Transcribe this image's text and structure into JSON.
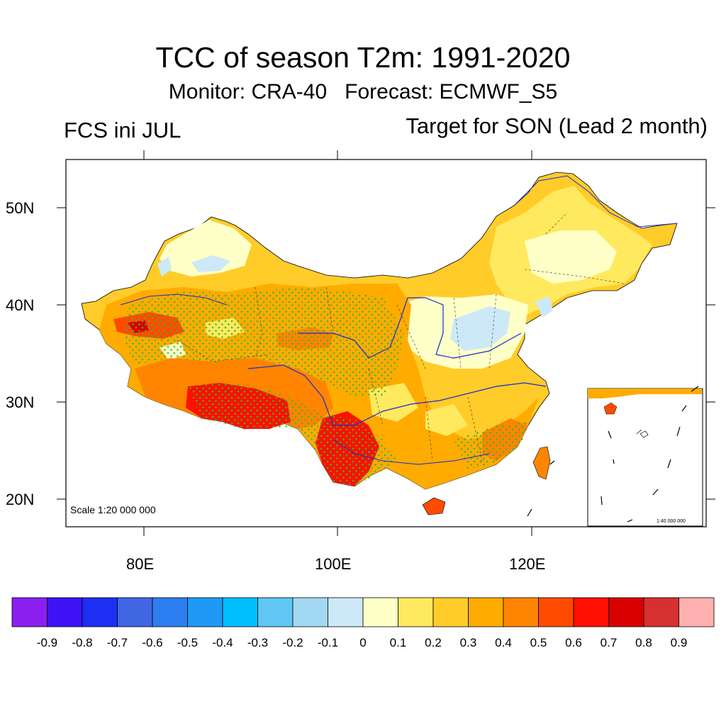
{
  "title": "TCC of season T2m: 1991-2020",
  "subtitle": "Monitor: CRA-40   Forecast: ECMWF_S5",
  "left_label": "FCS ini JUL",
  "right_label": "Target for SON (Lead 2 month)",
  "axes": {
    "lat_labels": [
      "50N",
      "40N",
      "30N",
      "20N"
    ],
    "lon_labels": [
      "80E",
      "100E",
      "120E"
    ],
    "lat_range": [
      17,
      55
    ],
    "lon_range": [
      72,
      138
    ]
  },
  "scale_text": "Scale 1:20 000 000",
  "inset_scale_text": "1:40 000 000",
  "colorbar": {
    "labels": [
      "-0.9",
      "-0.8",
      "-0.7",
      "-0.6",
      "-0.5",
      "-0.4",
      "-0.3",
      "-0.2",
      "-0.1",
      "0",
      "0.1",
      "0.2",
      "0.3",
      "0.4",
      "0.5",
      "0.6",
      "0.7",
      "0.8",
      "0.9"
    ],
    "colors": [
      "#8b1ff0",
      "#3d12f5",
      "#1e2ff4",
      "#4066e4",
      "#2d7ef0",
      "#1e9af6",
      "#00bfff",
      "#60c6f3",
      "#a3d8f3",
      "#cde9f7",
      "#ffffc8",
      "#ffe95e",
      "#ffcc29",
      "#ffab00",
      "#ff8500",
      "#ff4b00",
      "#ff1000",
      "#d90000",
      "#d73030",
      "#ffb0b0"
    ]
  },
  "region_colors": {
    "northwest_pale": "#cde9f7",
    "weak_positive": "#ffffc8",
    "low": "#ffe95e",
    "mid": "#ffcc29",
    "orange": "#ffab00",
    "dark_orange": "#ff8500",
    "red_orange": "#ff4b00",
    "red": "#ff1000",
    "significance_dots": "#37b82f",
    "rivers": "#1a2bd6"
  }
}
